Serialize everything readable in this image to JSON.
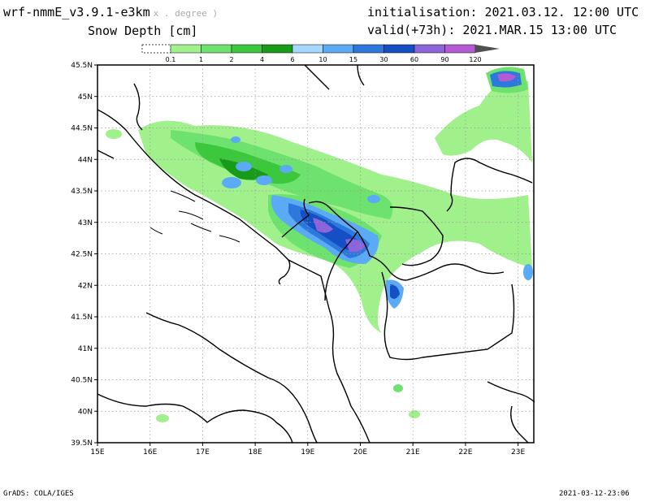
{
  "header": {
    "model": "wrf-nmmE_v3.9.1-e3km",
    "model_sub": "x . degree )",
    "field": "Snow Depth [cm]",
    "init_label": "initialisation:",
    "init_value": "2021.03.12.  12:00 UTC",
    "valid_label": "valid(+73h):",
    "valid_value": "2021.MAR.15 13:00 UTC"
  },
  "legend": {
    "labels": [
      "0.1",
      "1",
      "2",
      "4",
      "6",
      "10",
      "15",
      "30",
      "60",
      "90",
      "120"
    ],
    "colors": [
      "#ffffff",
      "#a0f08c",
      "#6ee26e",
      "#3cc83c",
      "#189b18",
      "#a5d7ff",
      "#5aaaf5",
      "#2d78dc",
      "#1450c3",
      "#8c64dc",
      "#b45ad2",
      "#505050"
    ]
  },
  "map": {
    "lon_labels": [
      "15E",
      "16E",
      "17E",
      "18E",
      "19E",
      "20E",
      "21E",
      "22E",
      "23E"
    ],
    "lat_labels": [
      "45.5N",
      "45N",
      "44.5N",
      "44N",
      "43.5N",
      "43N",
      "42.5N",
      "42N",
      "41.5N",
      "41N",
      "40.5N",
      "40N",
      "39.5N"
    ]
  },
  "footer": {
    "left": "GrADS: COLA/IGES",
    "right": "2021-03-12-23:06"
  }
}
